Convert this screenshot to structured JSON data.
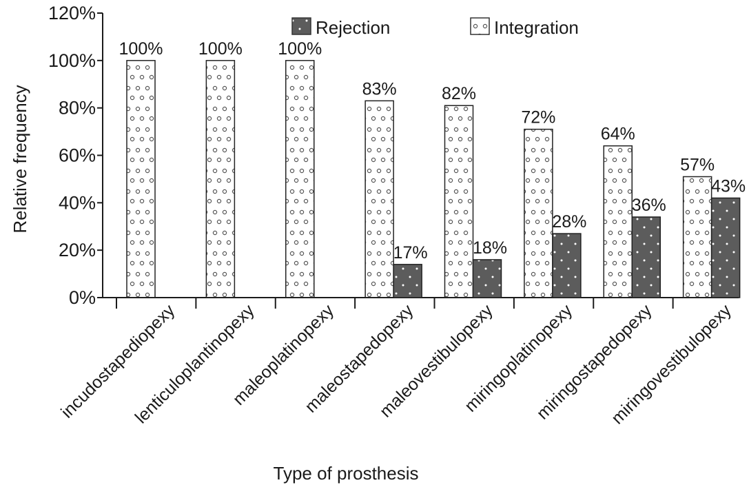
{
  "chart_data": {
    "type": "bar",
    "title": "",
    "xlabel": "Type of prosthesis",
    "ylabel": "Relative frequency",
    "ylim": [
      0,
      120
    ],
    "y_ticks": [
      0,
      20,
      40,
      60,
      80,
      100,
      120
    ],
    "y_tick_format": "percent",
    "grid": false,
    "legend_position": "top",
    "categories": [
      "incudostapediopexy",
      "lenticuloplantinopexy",
      "maleoplatinopexy",
      "maleostapedopexy",
      "maleovestibulopexy",
      "miringoplatinopexy",
      "miringostapedopexy",
      "miringovestibulopexy"
    ],
    "series": [
      {
        "name": "Integration",
        "pattern": "white-with-dots",
        "color": "#ffffff",
        "values": [
          100,
          100,
          100,
          83,
          82,
          72,
          64,
          57
        ],
        "labels": [
          "100%",
          "100%",
          "100%",
          "83%",
          "82%",
          "72%",
          "64%",
          "57%"
        ],
        "drawn_heights": [
          100,
          100,
          100,
          83,
          81,
          71,
          64,
          51
        ]
      },
      {
        "name": "Rejection",
        "pattern": "dark-with-dots",
        "color": "#5c5c5c",
        "values": [
          0,
          0,
          0,
          17,
          18,
          28,
          36,
          43
        ],
        "labels": [
          "",
          "",
          "",
          "17%",
          "18%",
          "28%",
          "36%",
          "43%"
        ],
        "drawn_heights": [
          0,
          0,
          0,
          14,
          16,
          27,
          34,
          42
        ]
      }
    ]
  }
}
